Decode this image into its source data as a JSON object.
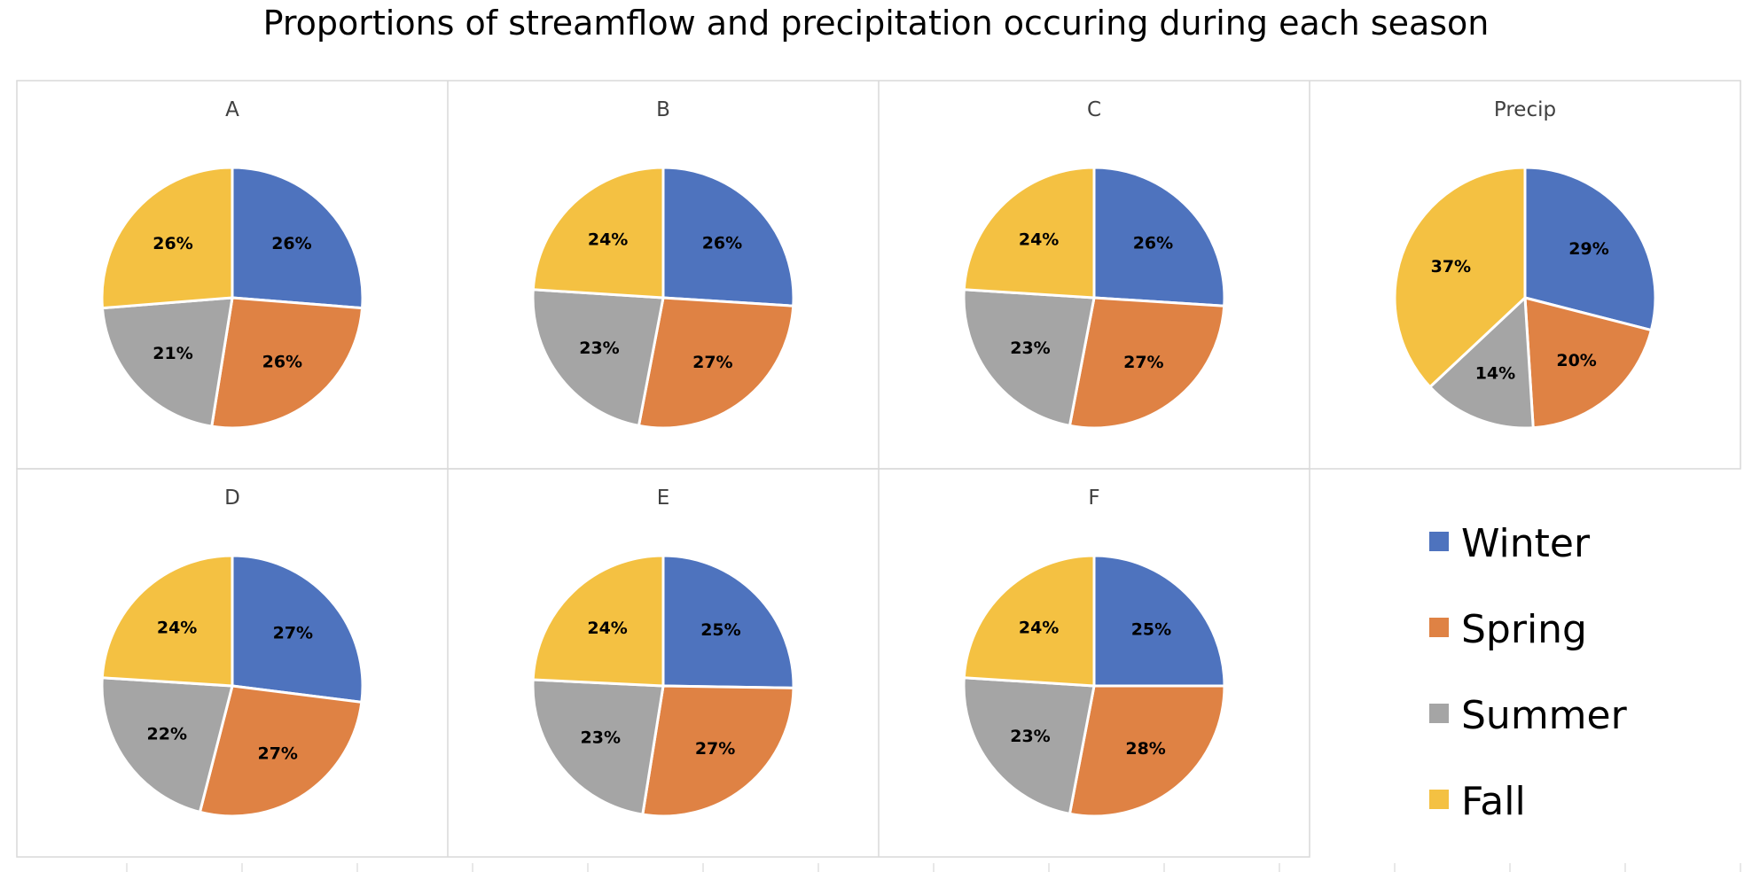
{
  "chart_data": {
    "type": "pie",
    "title": "Proportions of streamflow and precipitation occuring during each season",
    "categories": [
      "Winter",
      "Spring",
      "Summer",
      "Fall"
    ],
    "colors": {
      "Winter": "#4E73BE",
      "Spring": "#DF8244",
      "Summer": "#A5A5A5",
      "Fall": "#F4C142"
    },
    "legend": "bottom-right",
    "charts": [
      {
        "name": "A",
        "values": [
          26,
          26,
          21,
          26
        ],
        "labels": [
          "26%",
          "26%",
          "21%",
          "26%"
        ]
      },
      {
        "name": "B",
        "values": [
          26,
          27,
          23,
          24
        ],
        "labels": [
          "26%",
          "27%",
          "23%",
          "24%"
        ]
      },
      {
        "name": "C",
        "values": [
          26,
          27,
          23,
          24
        ],
        "labels": [
          "26%",
          "27%",
          "23%",
          "24%"
        ]
      },
      {
        "name": "Precip",
        "values": [
          29,
          20,
          14,
          37
        ],
        "labels": [
          "29%",
          "20%",
          "14%",
          "37%"
        ]
      },
      {
        "name": "D",
        "values": [
          27,
          27,
          22,
          24
        ],
        "labels": [
          "27%",
          "27%",
          "22%",
          "24%"
        ]
      },
      {
        "name": "E",
        "values": [
          25,
          27,
          23,
          24
        ],
        "labels": [
          "25%",
          "27%",
          "23%",
          "24%"
        ]
      },
      {
        "name": "F",
        "values": [
          25,
          28,
          23,
          24
        ],
        "labels": [
          "25%",
          "28%",
          "23%",
          "24%"
        ]
      }
    ]
  }
}
